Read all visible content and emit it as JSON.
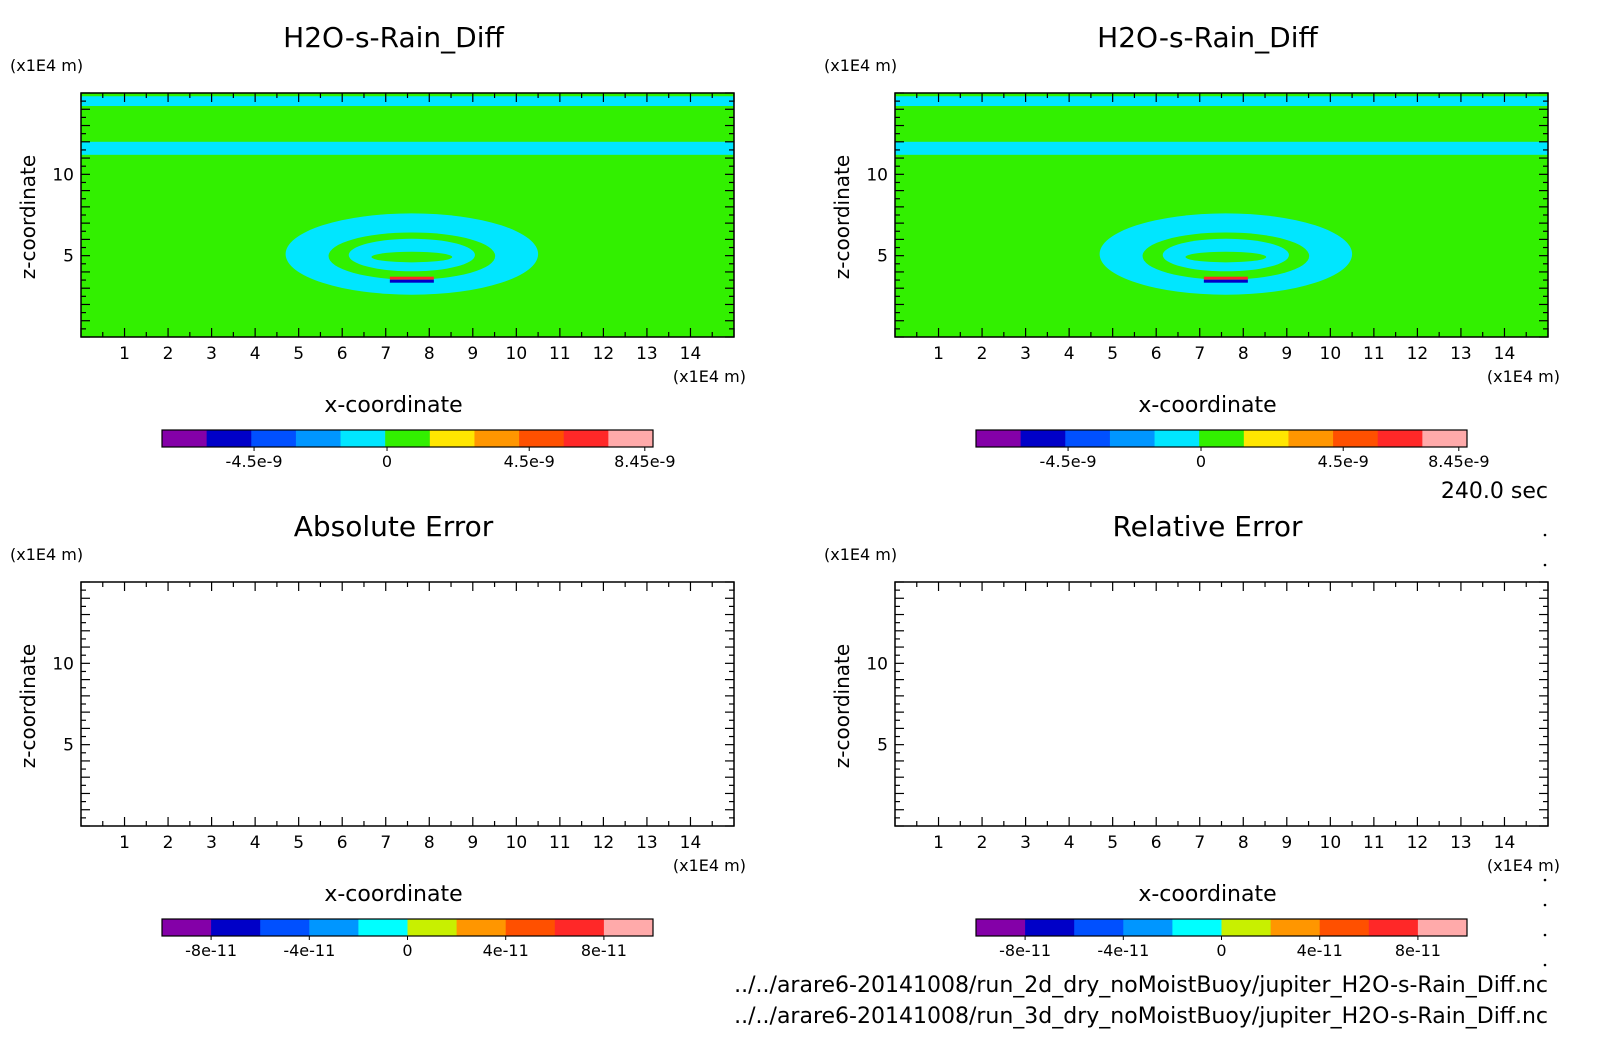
{
  "time_label": "240.0 sec",
  "file_paths": [
    "../../arare6-20141008/run_2d_dry_noMoistBuoy/jupiter_H2O-s-Rain_Diff.nc",
    "../../arare6-20141008/run_3d_dry_noMoistBuoy/jupiter_H2O-s-Rain_Diff.nc"
  ],
  "chart_data": [
    {
      "type": "heatmap",
      "title": "H2O-s-Rain_Diff",
      "xlabel": "x-coordinate",
      "ylabel": "z-coordinate",
      "x_unit": "(x1E4 m)",
      "y_unit": "(x1E4 m)",
      "xlim": [
        0,
        15
      ],
      "ylim": [
        0,
        15
      ],
      "x_ticks": [
        1,
        2,
        3,
        4,
        5,
        6,
        7,
        8,
        9,
        10,
        11,
        12,
        13,
        14
      ],
      "y_ticks": [
        5,
        10
      ],
      "field": {
        "background": 0,
        "bands_z": [
          [
            14.2,
            14.8
          ],
          [
            11.2,
            12.0
          ]
        ],
        "ring_center": [
          7.6,
          5.1
        ],
        "core_z": 3.4
      },
      "colorbar": {
        "colors": [
          "#8400a8",
          "#0000c8",
          "#0050ff",
          "#0096ff",
          "#00e6ff",
          "#32f000",
          "#ffe600",
          "#ff9600",
          "#ff5000",
          "#ff2828",
          "#ffaaaa"
        ],
        "tick_labels": [
          "-4.5e-9",
          "0",
          "4.5e-9",
          "8.45e-9"
        ],
        "tick_fraction": [
          0.1875,
          0.4583,
          0.7479,
          0.9833
        ]
      }
    },
    {
      "type": "heatmap",
      "title": "H2O-s-Rain_Diff",
      "xlabel": "x-coordinate",
      "ylabel": "z-coordinate",
      "x_unit": "(x1E4 m)",
      "y_unit": "(x1E4 m)",
      "xlim": [
        0,
        15
      ],
      "ylim": [
        0,
        15
      ],
      "x_ticks": [
        1,
        2,
        3,
        4,
        5,
        6,
        7,
        8,
        9,
        10,
        11,
        12,
        13,
        14
      ],
      "y_ticks": [
        5,
        10
      ],
      "field": {
        "background": 0,
        "bands_z": [
          [
            14.2,
            14.8
          ],
          [
            11.2,
            12.0
          ]
        ],
        "ring_center": [
          7.6,
          5.1
        ],
        "core_z": 3.4
      },
      "colorbar": {
        "colors": [
          "#8400a8",
          "#0000c8",
          "#0050ff",
          "#0096ff",
          "#00e6ff",
          "#32f000",
          "#ffe600",
          "#ff9600",
          "#ff5000",
          "#ff2828",
          "#ffaaaa"
        ],
        "tick_labels": [
          "-4.5e-9",
          "0",
          "4.5e-9",
          "8.45e-9"
        ],
        "tick_fraction": [
          0.1875,
          0.4583,
          0.7479,
          0.9833
        ]
      }
    },
    {
      "type": "heatmap",
      "title": "Absolute Error",
      "xlabel": "x-coordinate",
      "ylabel": "z-coordinate",
      "x_unit": "(x1E4 m)",
      "y_unit": "(x1E4 m)",
      "xlim": [
        0,
        15
      ],
      "ylim": [
        0,
        15
      ],
      "x_ticks": [
        1,
        2,
        3,
        4,
        5,
        6,
        7,
        8,
        9,
        10,
        11,
        12,
        13,
        14
      ],
      "y_ticks": [
        5,
        10
      ],
      "field": null,
      "colorbar": {
        "colors": [
          "#8400a8",
          "#0000c8",
          "#0050ff",
          "#0096ff",
          "#00ffff",
          "#c8f000",
          "#ff9600",
          "#ff5000",
          "#ff2828",
          "#ffaaaa"
        ],
        "tick_labels": [
          "-8e-11",
          "-4e-11",
          "0",
          "4e-11",
          "8e-11"
        ],
        "tick_fraction": [
          0.1,
          0.3,
          0.5,
          0.7,
          0.9
        ]
      }
    },
    {
      "type": "heatmap",
      "title": "Relative Error",
      "xlabel": "x-coordinate",
      "ylabel": "z-coordinate",
      "x_unit": "(x1E4 m)",
      "y_unit": "(x1E4 m)",
      "xlim": [
        0,
        15
      ],
      "ylim": [
        0,
        15
      ],
      "x_ticks": [
        1,
        2,
        3,
        4,
        5,
        6,
        7,
        8,
        9,
        10,
        11,
        12,
        13,
        14
      ],
      "y_ticks": [
        5,
        10
      ],
      "field": null,
      "colorbar": {
        "colors": [
          "#8400a8",
          "#0000c8",
          "#0050ff",
          "#0096ff",
          "#00ffff",
          "#c8f000",
          "#ff9600",
          "#ff5000",
          "#ff2828",
          "#ffaaaa"
        ],
        "tick_labels": [
          "-8e-11",
          "-4e-11",
          "0",
          "4e-11",
          "8e-11"
        ],
        "tick_fraction": [
          0.1,
          0.3,
          0.5,
          0.7,
          0.9
        ]
      }
    }
  ]
}
